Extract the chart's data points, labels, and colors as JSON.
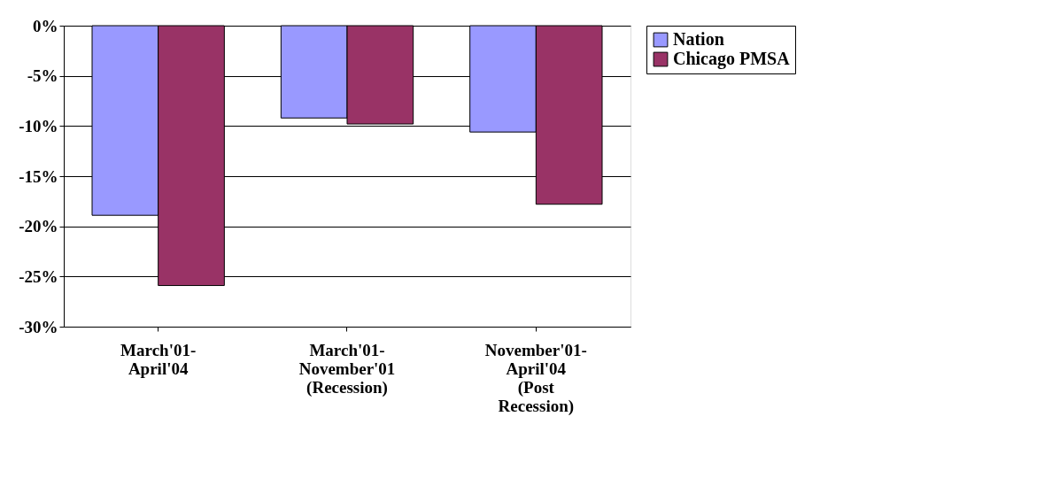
{
  "chart_data": {
    "type": "bar",
    "categories": [
      "March'01-April'04",
      "March'01-November'01 (Recession)",
      "November'01-April'04 (Post Recession)"
    ],
    "series": [
      {
        "name": "Nation",
        "color": "#9999ff",
        "values": [
          -18.9,
          -9.2,
          -10.6
        ]
      },
      {
        "name": "Chicago PMSA",
        "color": "#993366",
        "values": [
          -25.9,
          -9.8,
          -17.8
        ]
      }
    ],
    "ylim": [
      -30,
      0
    ],
    "yticks": [
      {
        "value": 0,
        "label": "0%"
      },
      {
        "value": -5,
        "label": "-5%"
      },
      {
        "value": -10,
        "label": "-10%"
      },
      {
        "value": -15,
        "label": "-15%"
      },
      {
        "value": -20,
        "label": "-20%"
      },
      {
        "value": -25,
        "label": "-25%"
      },
      {
        "value": -30,
        "label": "-30%"
      }
    ],
    "grid": "y",
    "legend": "right"
  }
}
